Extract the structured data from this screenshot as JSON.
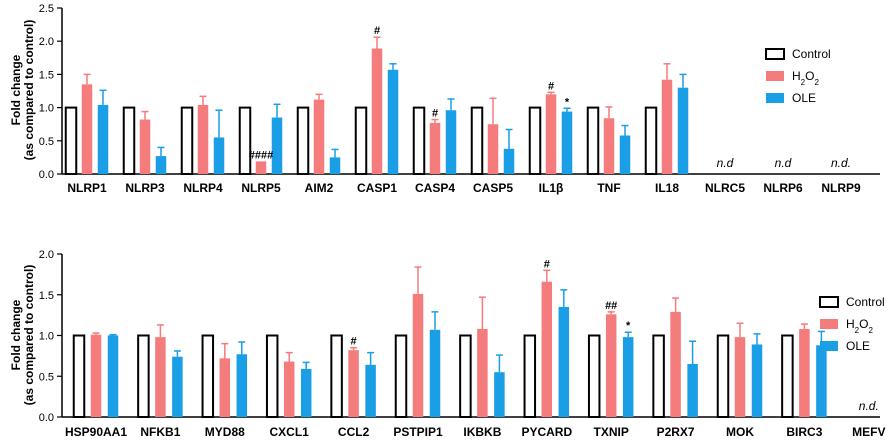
{
  "colors": {
    "control": "#ffffff",
    "h2o2": "#f47c7c",
    "ole": "#1a9ee6",
    "axis": "#000000"
  },
  "chart_data": [
    {
      "type": "bar",
      "title": "",
      "ylabel_lines": [
        "Fold change",
        "(as compared to control)"
      ],
      "ylim": [
        0,
        2.5
      ],
      "yticks": [
        "0.0",
        "0.5",
        "1.0",
        "1.5",
        "2.0",
        "2.5"
      ],
      "categories": [
        "NLRP1",
        "NLRP3",
        "NLRP4",
        "NLRP5",
        "AIM2",
        "CASP1",
        "CASP4",
        "CASP5",
        "IL1β",
        "TNF",
        "IL18",
        "NLRC5",
        "NLRP6",
        "NLRP9"
      ],
      "series": [
        {
          "name": "Control",
          "values": [
            1,
            1,
            1,
            1,
            1,
            1,
            1,
            1,
            1,
            1,
            1,
            null,
            null,
            null
          ],
          "errors": [
            0,
            0,
            0,
            0,
            0,
            0,
            0,
            0,
            0,
            0,
            0,
            null,
            null,
            null
          ]
        },
        {
          "name": "H2O2",
          "values": [
            1.35,
            0.82,
            1.04,
            0.19,
            1.12,
            1.89,
            0.77,
            0.75,
            1.2,
            0.84,
            1.42,
            null,
            null,
            null
          ],
          "errors": [
            0.15,
            0.12,
            0.13,
            0,
            0.08,
            0.17,
            0.05,
            0.39,
            0.03,
            0.17,
            0.24,
            null,
            null,
            null
          ]
        },
        {
          "name": "OLE",
          "values": [
            1.04,
            0.27,
            0.55,
            0.85,
            0.25,
            1.57,
            0.96,
            0.38,
            0.94,
            0.58,
            1.3,
            null,
            null,
            null
          ],
          "errors": [
            0.22,
            0.13,
            0.41,
            0.2,
            0.12,
            0.09,
            0.17,
            0.29,
            0.05,
            0.15,
            0.2,
            null,
            null,
            null
          ]
        }
      ],
      "annotations": [
        {
          "category": "NLRP5",
          "series": "H2O2",
          "text": "####"
        },
        {
          "category": "CASP1",
          "series": "H2O2",
          "text": "#"
        },
        {
          "category": "CASP4",
          "series": "H2O2",
          "text": "#"
        },
        {
          "category": "IL1β",
          "series": "H2O2",
          "text": "#"
        },
        {
          "category": "IL1β",
          "series": "OLE",
          "text": "*"
        }
      ],
      "nd": [
        {
          "category": "NLRC5",
          "text": "n.d"
        },
        {
          "category": "NLRP6",
          "text": "n.d"
        },
        {
          "category": "NLRP9",
          "text": "n.d."
        }
      ],
      "legend": [
        "Control",
        "H2O2",
        "OLE"
      ],
      "legend_position": "right"
    },
    {
      "type": "bar",
      "title": "",
      "ylabel_lines": [
        "Fold change",
        "(as compared to control)"
      ],
      "ylim": [
        0,
        2.0
      ],
      "yticks": [
        "0.0",
        "0.5",
        "1.0",
        "1.5",
        "2.0"
      ],
      "categories": [
        "HSP90AA1",
        "NFKB1",
        "MYD88",
        "CXCL1",
        "CCL2",
        "PSTPIP1",
        "IKBKB",
        "PYCARD",
        "TXNIP",
        "P2RX7",
        "MOK",
        "BIRC3",
        "MEFV"
      ],
      "series": [
        {
          "name": "Control",
          "values": [
            1,
            1,
            1,
            1,
            1,
            1,
            1,
            1,
            1,
            1,
            1,
            1,
            null
          ],
          "errors": [
            0,
            0,
            0,
            0,
            0,
            0,
            0,
            0,
            0,
            0,
            0,
            0,
            null
          ]
        },
        {
          "name": "H2O2",
          "values": [
            1.01,
            0.98,
            0.72,
            0.68,
            0.82,
            1.51,
            1.08,
            1.66,
            1.26,
            1.29,
            0.98,
            1.08,
            null
          ],
          "errors": [
            0.02,
            0.15,
            0.18,
            0.11,
            0.03,
            0.33,
            0.39,
            0.14,
            0.03,
            0.17,
            0.17,
            0.06,
            null
          ]
        },
        {
          "name": "OLE",
          "values": [
            1.0,
            0.74,
            0.77,
            0.59,
            0.64,
            1.07,
            0.55,
            1.35,
            0.98,
            0.65,
            0.89,
            0.88,
            null
          ],
          "errors": [
            0.01,
            0.07,
            0.15,
            0.08,
            0.15,
            0.22,
            0.21,
            0.21,
            0.06,
            0.28,
            0.13,
            0.17,
            null
          ]
        }
      ],
      "annotations": [
        {
          "category": "CCL2",
          "series": "H2O2",
          "text": "#"
        },
        {
          "category": "PYCARD",
          "series": "H2O2",
          "text": "#"
        },
        {
          "category": "TXNIP",
          "series": "H2O2",
          "text": "##"
        },
        {
          "category": "TXNIP",
          "series": "OLE",
          "text": "*"
        }
      ],
      "nd": [
        {
          "category": "MEFV",
          "text": "n.d."
        }
      ],
      "legend": [
        "Control",
        "H2O2",
        "OLE"
      ],
      "legend_position": "right"
    }
  ]
}
